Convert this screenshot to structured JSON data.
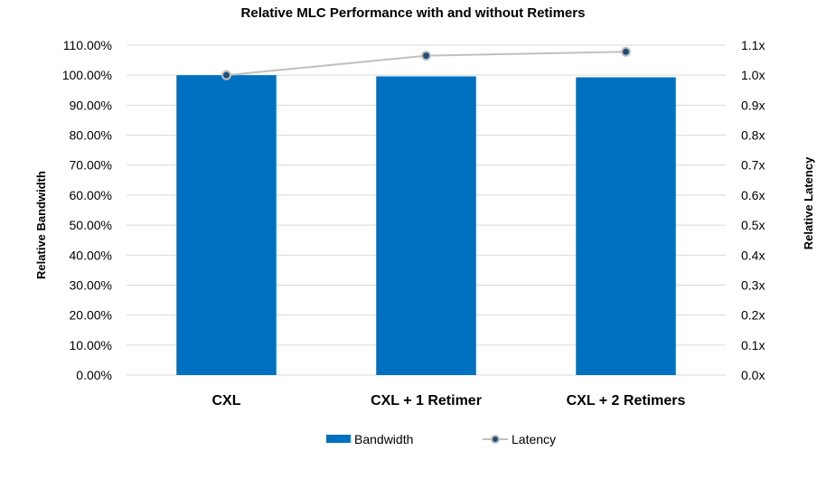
{
  "chart_data": {
    "type": "bar",
    "title": "Relative MLC Performance with and without Retimers",
    "categories": [
      "CXL",
      "CXL + 1 Retimer",
      "CXL + 2 Retimers"
    ],
    "ylabel": "Relative Bandwidth",
    "y2label": "Relative Latency",
    "ylim": [
      0,
      110
    ],
    "y2lim": [
      0,
      1.1
    ],
    "yticks": [
      "0.00%",
      "10.00%",
      "20.00%",
      "30.00%",
      "40.00%",
      "50.00%",
      "60.00%",
      "70.00%",
      "80.00%",
      "90.00%",
      "100.00%",
      "110.00%"
    ],
    "y2ticks": [
      "0.0x",
      "0.1x",
      "0.2x",
      "0.3x",
      "0.4x",
      "0.5x",
      "0.6x",
      "0.7x",
      "0.8x",
      "0.9x",
      "1.0x",
      "1.1x"
    ],
    "grid": true,
    "legend_position": "bottom",
    "series": [
      {
        "name": "Bandwidth",
        "type": "bar",
        "axis": "left",
        "color": "#0070c0",
        "values": [
          100.0,
          99.6,
          99.3
        ]
      },
      {
        "name": "Latency",
        "type": "line",
        "axis": "right",
        "color": "#bfbfbf",
        "marker_color": "#1f4e79",
        "values": [
          1.0,
          1.065,
          1.078
        ]
      }
    ]
  }
}
